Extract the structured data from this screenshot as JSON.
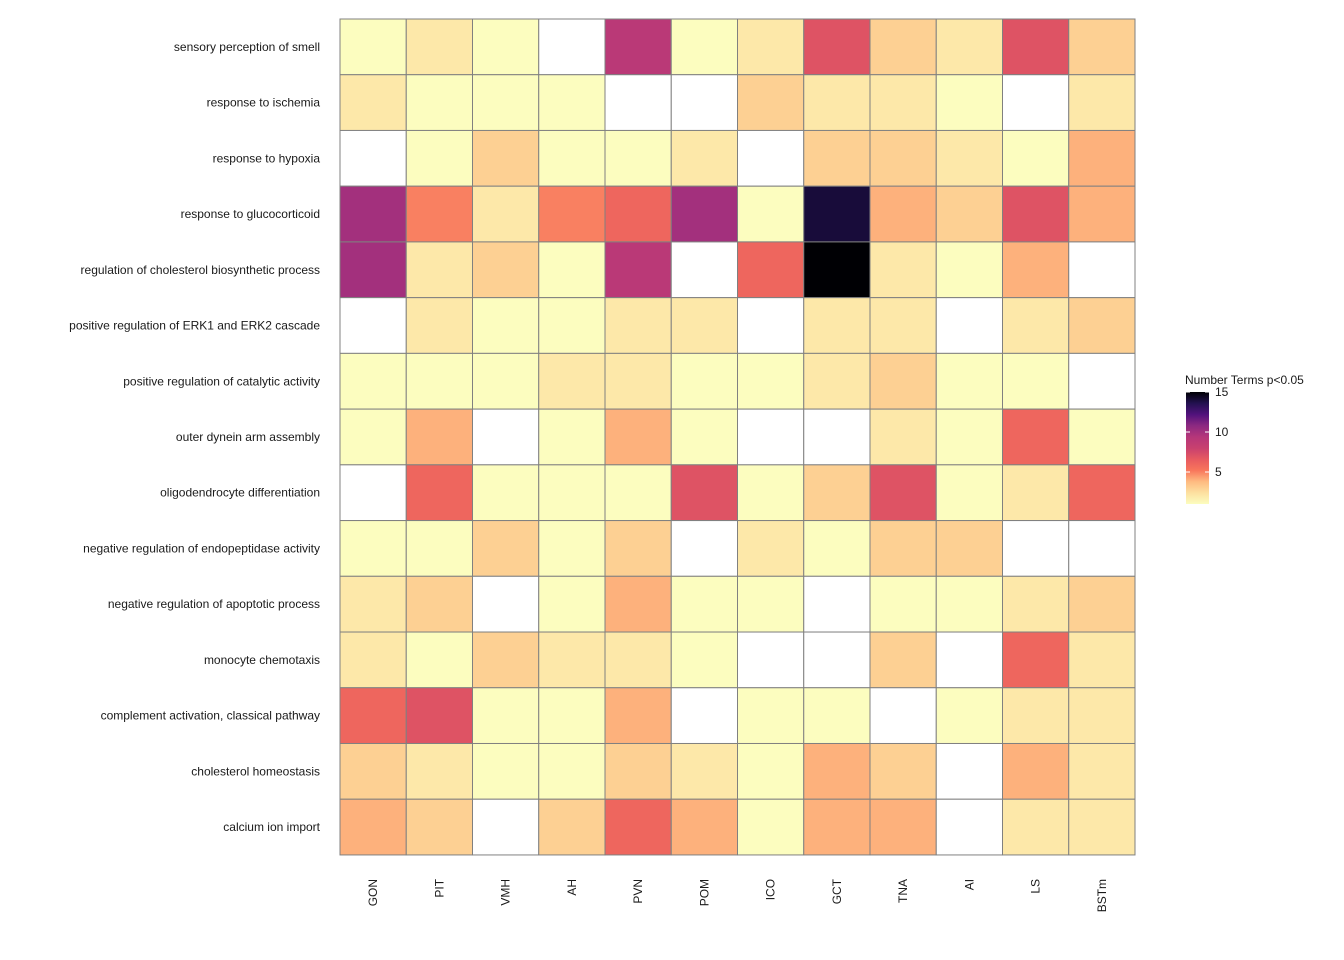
{
  "chart_data": {
    "type": "heatmap",
    "x_categories": [
      "GON",
      "PIT",
      "VMH",
      "AH",
      "PVN",
      "POM",
      "ICO",
      "GCT",
      "TNA",
      "AI",
      "LS",
      "BSTm"
    ],
    "y_categories": [
      "sensory perception of smell",
      "response to ischemia",
      "response to hypoxia",
      "response to glucocorticoid",
      "regulation of cholesterol biosynthetic process",
      "positive regulation of ERK1 and ERK2 cascade",
      "positive regulation of catalytic activity",
      "outer dynein arm assembly",
      "oligodendrocyte differentiation",
      "negative regulation of endopeptidase activity",
      "negative regulation of apoptotic process",
      "monocyte chemotaxis",
      "complement activation, classical pathway",
      "cholesterol homeostasis",
      "calcium ion import"
    ],
    "values": [
      [
        1,
        2,
        1,
        null,
        9,
        1,
        2,
        7,
        3,
        2,
        7,
        3
      ],
      [
        2,
        1,
        1,
        1,
        null,
        null,
        3,
        2,
        2,
        1,
        null,
        2
      ],
      [
        null,
        1,
        3,
        1,
        1,
        2,
        null,
        3,
        3,
        2,
        1,
        4
      ],
      [
        10,
        5,
        2,
        5,
        6,
        10,
        1,
        14,
        4,
        3,
        7,
        4
      ],
      [
        10,
        2,
        3,
        1,
        9,
        null,
        6,
        15,
        2,
        1,
        4,
        null
      ],
      [
        null,
        2,
        1,
        1,
        2,
        2,
        null,
        2,
        2,
        null,
        2,
        3
      ],
      [
        1,
        1,
        1,
        2,
        2,
        1,
        1,
        2,
        3,
        1,
        1,
        null
      ],
      [
        1,
        4,
        null,
        1,
        4,
        1,
        null,
        null,
        2,
        1,
        6,
        1
      ],
      [
        null,
        6,
        1,
        1,
        1,
        7,
        1,
        3,
        7,
        1,
        2,
        6
      ],
      [
        1,
        1,
        3,
        1,
        3,
        null,
        2,
        1,
        3,
        3,
        null,
        null
      ],
      [
        2,
        3,
        null,
        1,
        4,
        1,
        1,
        null,
        1,
        1,
        2,
        3
      ],
      [
        2,
        1,
        3,
        2,
        2,
        1,
        null,
        null,
        3,
        null,
        6,
        2
      ],
      [
        6,
        7,
        1,
        1,
        4,
        null,
        1,
        1,
        null,
        1,
        2,
        2
      ],
      [
        3,
        2,
        1,
        1,
        3,
        2,
        1,
        4,
        3,
        null,
        4,
        2
      ],
      [
        4,
        3,
        null,
        3,
        6,
        4,
        1,
        4,
        4,
        null,
        2,
        2
      ]
    ],
    "legend": {
      "title": "Number Terms p<0.05",
      "ticks": [
        5,
        10,
        15
      ],
      "min": 1,
      "max": 15,
      "placement": "right"
    },
    "colormap": {
      "name": "magma-reversed",
      "stops": [
        {
          "v": 1,
          "color": "#fcfdbf"
        },
        {
          "v": 2.4,
          "color": "#fde0a0"
        },
        {
          "v": 3.8,
          "color": "#febb81"
        },
        {
          "v": 5.2,
          "color": "#f8765c"
        },
        {
          "v": 6.6,
          "color": "#e75a60"
        },
        {
          "v": 8,
          "color": "#c8406f"
        },
        {
          "v": 9.4,
          "color": "#b5367a"
        },
        {
          "v": 10.8,
          "color": "#8c2981"
        },
        {
          "v": 12.2,
          "color": "#51127c"
        },
        {
          "v": 13.6,
          "color": "#221150"
        },
        {
          "v": 15,
          "color": "#000004"
        }
      ],
      "missing_color": "#ffffff",
      "border_color": "#808080"
    }
  }
}
